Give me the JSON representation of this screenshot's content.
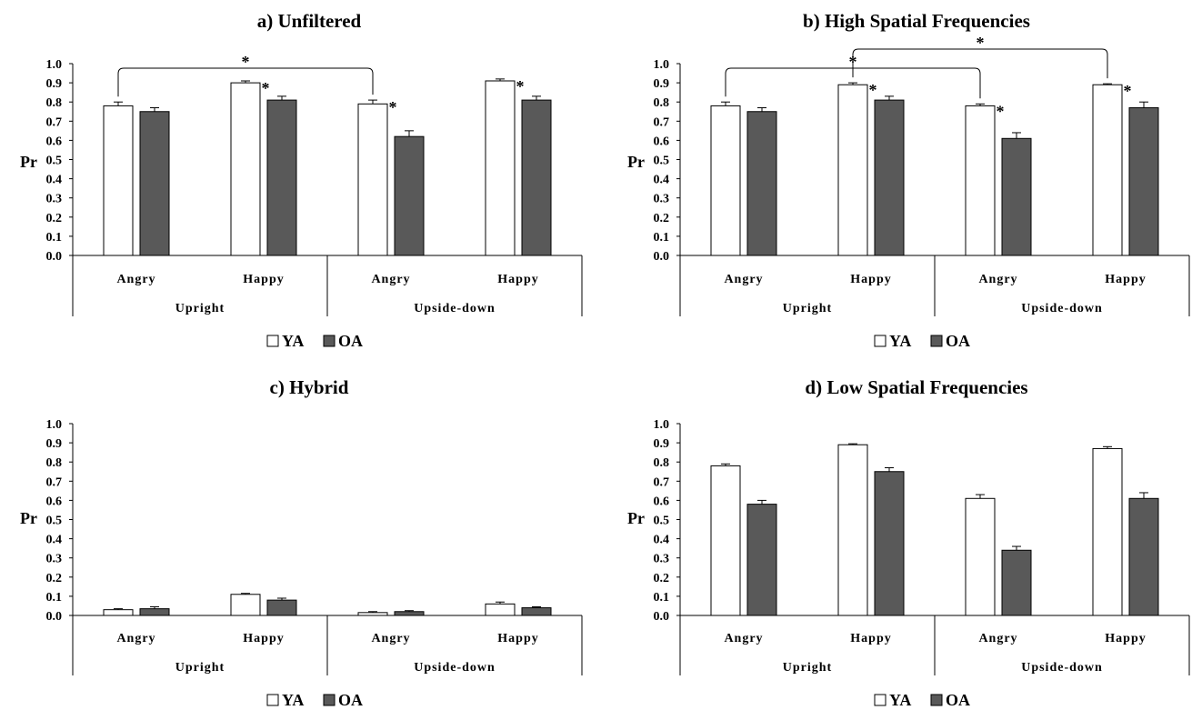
{
  "chart_data": [
    {
      "type": "bar",
      "title": "a) Unfiltered",
      "ylabel": "Pr",
      "ylim": [
        0,
        1
      ],
      "yticks": [
        "0.0",
        "0.1",
        "0.2",
        "0.3",
        "0.4",
        "0.5",
        "0.6",
        "0.7",
        "0.8",
        "0.9",
        "1.0"
      ],
      "groups": [
        "Upright",
        "Upside-down"
      ],
      "categories": [
        "Angry",
        "Happy",
        "Angry",
        "Happy"
      ],
      "series": [
        {
          "name": "YA",
          "color": "#ffffff",
          "values": [
            0.78,
            0.9,
            0.79,
            0.91
          ],
          "errors": [
            0.02,
            0.01,
            0.02,
            0.01
          ]
        },
        {
          "name": "OA",
          "color": "#595959",
          "values": [
            0.75,
            0.81,
            0.62,
            0.81
          ],
          "errors": [
            0.02,
            0.02,
            0.03,
            0.02
          ]
        }
      ],
      "significance": [
        {
          "type": "pair",
          "category": 1,
          "label": "*"
        },
        {
          "type": "pair",
          "category": 2,
          "label": "*"
        },
        {
          "type": "pair",
          "category": 3,
          "label": "*"
        },
        {
          "type": "bracket",
          "from": 0,
          "to": 2,
          "series": 0,
          "label": "*"
        }
      ],
      "legend": "bottom",
      "grid": false
    },
    {
      "type": "bar",
      "title": "b) High Spatial Frequencies",
      "ylabel": "Pr",
      "ylim": [
        0,
        1
      ],
      "yticks": [
        "0.0",
        "0.1",
        "0.2",
        "0.3",
        "0.4",
        "0.5",
        "0.6",
        "0.7",
        "0.8",
        "0.9",
        "1.0"
      ],
      "groups": [
        "Upright",
        "Upside-down"
      ],
      "categories": [
        "Angry",
        "Happy",
        "Angry",
        "Happy"
      ],
      "series": [
        {
          "name": "YA",
          "color": "#ffffff",
          "values": [
            0.78,
            0.89,
            0.78,
            0.89
          ],
          "errors": [
            0.02,
            0.01,
            0.01,
            0.005
          ]
        },
        {
          "name": "OA",
          "color": "#595959",
          "values": [
            0.75,
            0.81,
            0.61,
            0.77
          ],
          "errors": [
            0.02,
            0.02,
            0.03,
            0.03
          ]
        }
      ],
      "significance": [
        {
          "type": "pair",
          "category": 1,
          "label": "*"
        },
        {
          "type": "pair",
          "category": 2,
          "label": "*"
        },
        {
          "type": "pair",
          "category": 3,
          "label": "*"
        },
        {
          "type": "bracket",
          "from": 0,
          "to": 2,
          "series": 0,
          "label": "*"
        },
        {
          "type": "bracket",
          "from": 1,
          "to": 3,
          "series": 0,
          "label": "*"
        }
      ],
      "legend": "bottom",
      "grid": false
    },
    {
      "type": "bar",
      "title": "c) Hybrid",
      "ylabel": "Pr",
      "ylim": [
        0,
        1
      ],
      "yticks": [
        "0.0",
        "0.1",
        "0.2",
        "0.3",
        "0.4",
        "0.5",
        "0.6",
        "0.7",
        "0.8",
        "0.9",
        "1.0"
      ],
      "groups": [
        "Upright",
        "Upside-down"
      ],
      "categories": [
        "Angry",
        "Happy",
        "Angry",
        "Happy"
      ],
      "series": [
        {
          "name": "YA",
          "color": "#ffffff",
          "values": [
            0.03,
            0.11,
            0.015,
            0.06
          ],
          "errors": [
            0.005,
            0.005,
            0.005,
            0.01
          ]
        },
        {
          "name": "OA",
          "color": "#595959",
          "values": [
            0.035,
            0.08,
            0.02,
            0.04
          ],
          "errors": [
            0.01,
            0.01,
            0.005,
            0.005
          ]
        }
      ],
      "significance": [],
      "legend": "bottom",
      "grid": false
    },
    {
      "type": "bar",
      "title": "d) Low Spatial Frequencies",
      "ylabel": "Pr",
      "ylim": [
        0,
        1
      ],
      "yticks": [
        "0.0",
        "0.1",
        "0.2",
        "0.3",
        "0.4",
        "0.5",
        "0.6",
        "0.7",
        "0.8",
        "0.9",
        "1.0"
      ],
      "groups": [
        "Upright",
        "Upside-down"
      ],
      "categories": [
        "Angry",
        "Happy",
        "Angry",
        "Happy"
      ],
      "series": [
        {
          "name": "YA",
          "color": "#ffffff",
          "values": [
            0.78,
            0.89,
            0.61,
            0.87
          ],
          "errors": [
            0.01,
            0.005,
            0.02,
            0.01
          ]
        },
        {
          "name": "OA",
          "color": "#595959",
          "values": [
            0.58,
            0.75,
            0.34,
            0.61
          ],
          "errors": [
            0.02,
            0.02,
            0.02,
            0.03
          ]
        }
      ],
      "significance": [],
      "legend": "bottom",
      "grid": false
    }
  ]
}
